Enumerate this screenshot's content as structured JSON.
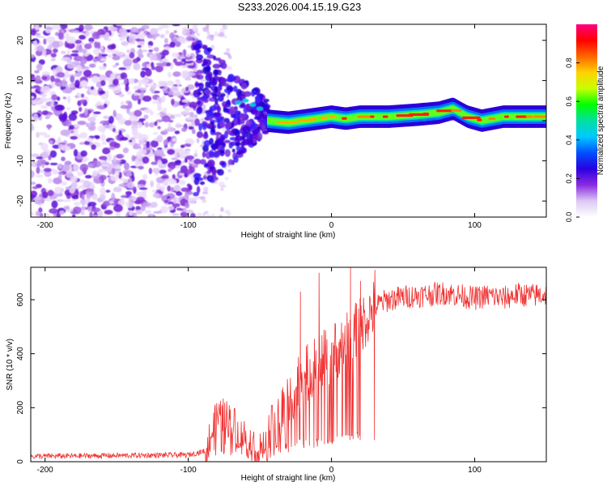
{
  "title": "S233.2026.004.15.19.G23",
  "chart_data": [
    {
      "type": "heatmap",
      "xlabel": "Height of straight line (km)",
      "ylabel": "Frequency (Hz)",
      "xlim": [
        -210,
        150
      ],
      "ylim": [
        -24,
        24
      ],
      "xticks": [
        -200,
        -100,
        0,
        100
      ],
      "yticks": [
        -20,
        -10,
        0,
        10,
        20
      ],
      "colorbar": {
        "label": "Normalized spectral amplitude",
        "range": [
          0,
          1
        ],
        "ticks": [
          "0.0",
          "0.2",
          "0.4",
          "0.6",
          "0.8"
        ],
        "tick_values": [
          0.0,
          0.2,
          0.4,
          0.6,
          0.8
        ],
        "colors": [
          "#ffffff",
          "#dcc8f5",
          "#8a2be2",
          "#2b00e0",
          "#0050ff",
          "#00c8ff",
          "#00e0a0",
          "#00ff00",
          "#c8ff00",
          "#ffd200",
          "#ff6600",
          "#ff0000",
          "#ff0080"
        ]
      },
      "ridge": {
        "x": [
          -45,
          -30,
          -20,
          -10,
          0,
          10,
          20,
          40,
          60,
          75,
          85,
          95,
          105,
          120,
          150
        ],
        "freq_hz": [
          0,
          -0.5,
          0,
          0.5,
          1,
          0.5,
          1,
          1,
          1.5,
          2,
          3,
          1,
          0,
          1,
          1
        ]
      },
      "noise_region_x": [
        -210,
        -95
      ],
      "transition_region_x": [
        -95,
        -45
      ]
    },
    {
      "type": "line",
      "xlabel": "Height of straight line (km)",
      "ylabel": "SNR (10 * v/v)",
      "xlim": [
        -210,
        150
      ],
      "ylim": [
        0,
        720
      ],
      "xticks": [
        -200,
        -100,
        0,
        100
      ],
      "yticks": [
        0,
        200,
        400,
        600
      ],
      "color": "#f03030",
      "series": [
        {
          "name": "SNR",
          "x": [
            -210,
            -100,
            -88,
            -80,
            -75,
            -70,
            -65,
            -60,
            -55,
            -50,
            -45,
            -40,
            -35,
            -30,
            -25,
            -20,
            -15,
            -10,
            -5,
            0,
            5,
            10,
            15,
            20,
            25,
            30,
            35,
            40,
            50,
            60,
            70,
            80,
            90,
            100,
            110,
            120,
            130,
            140,
            150
          ],
          "values": [
            20,
            25,
            40,
            160,
            170,
            150,
            120,
            90,
            60,
            40,
            70,
            120,
            180,
            230,
            280,
            320,
            330,
            360,
            380,
            400,
            420,
            440,
            470,
            500,
            540,
            570,
            590,
            600,
            610,
            615,
            620,
            625,
            615,
            605,
            615,
            605,
            620,
            615,
            620
          ]
        }
      ],
      "spikes": [
        {
          "x": -22,
          "y": 630
        },
        {
          "x": -9,
          "y": 700
        },
        {
          "x": 13,
          "y": 720
        },
        {
          "x": 20,
          "y": 670
        },
        {
          "x": 30,
          "y": 710
        }
      ]
    }
  ]
}
